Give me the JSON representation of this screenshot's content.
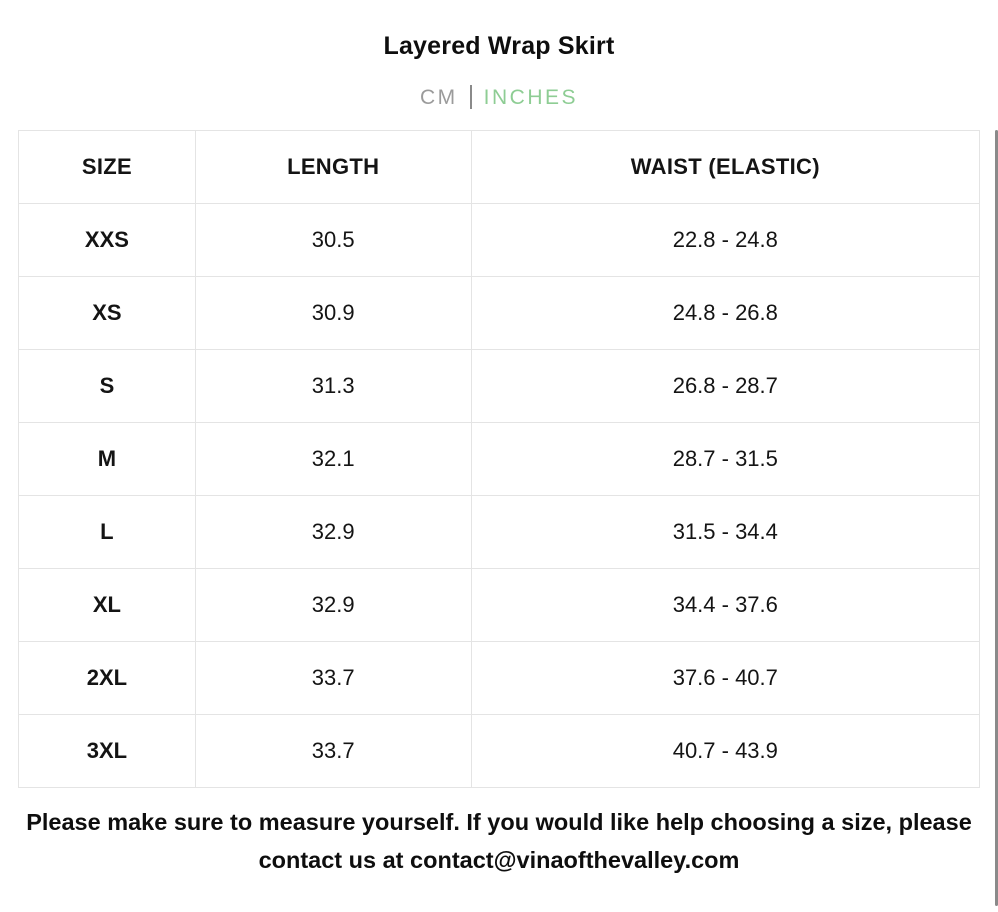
{
  "header": {
    "title": "Layered Wrap Skirt",
    "units": {
      "cm_label": "CM",
      "inches_label": "INCHES",
      "active_unit": "INCHES"
    }
  },
  "table": {
    "columns": [
      "SIZE",
      "LENGTH",
      "WAIST (ELASTIC)"
    ],
    "rows": [
      {
        "size": "XXS",
        "length": "30.5",
        "waist": "22.8 - 24.8"
      },
      {
        "size": "XS",
        "length": "30.9",
        "waist": "24.8 - 26.8"
      },
      {
        "size": "S",
        "length": "31.3",
        "waist": "26.8 - 28.7"
      },
      {
        "size": "M",
        "length": "32.1",
        "waist": "28.7 - 31.5"
      },
      {
        "size": "L",
        "length": "32.9",
        "waist": "31.5 - 34.4"
      },
      {
        "size": "XL",
        "length": "32.9",
        "waist": "34.4 - 37.6"
      },
      {
        "size": "2XL",
        "length": "33.7",
        "waist": "37.6 - 40.7"
      },
      {
        "size": "3XL",
        "length": "33.7",
        "waist": "40.7 - 43.9"
      }
    ]
  },
  "footer": {
    "note": "Please make sure to measure yourself. If you would like help choosing a size, please contact us at contact@vinaofthevalley.com"
  },
  "colors": {
    "inches_active": "#8ecd94",
    "cm_inactive": "#9b9b9b",
    "table_border": "#e4e4e4",
    "text": "#0e0e0e"
  }
}
